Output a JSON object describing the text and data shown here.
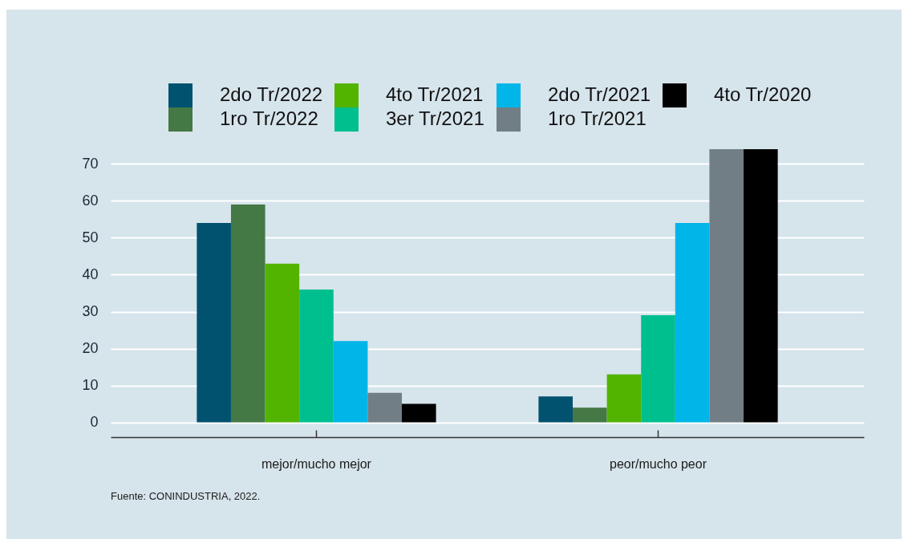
{
  "chart_data": {
    "type": "bar",
    "categories": [
      "mejor/mucho mejor",
      "peor/mucho peor"
    ],
    "series": [
      {
        "name": "2do Tr/2022",
        "color": "#00526f",
        "values": [
          54,
          7
        ]
      },
      {
        "name": "1ro Tr/2022",
        "color": "#447845",
        "values": [
          59,
          4
        ]
      },
      {
        "name": "4to Tr/2021",
        "color": "#53b400",
        "values": [
          43,
          13
        ]
      },
      {
        "name": "3er Tr/2021",
        "color": "#00bf8f",
        "values": [
          36,
          29
        ]
      },
      {
        "name": "2do Tr/2021",
        "color": "#00b5e8",
        "values": [
          22,
          54
        ]
      },
      {
        "name": "1ro Tr/2021",
        "color": "#717e86",
        "values": [
          8,
          74
        ]
      },
      {
        "name": "4to Tr/2020",
        "color": "#000000",
        "values": [
          5,
          74
        ]
      }
    ],
    "ylim": [
      -4,
      74
    ],
    "yticks": [
      0,
      10,
      20,
      30,
      40,
      50,
      60,
      70
    ],
    "grid": "y",
    "legend": "top",
    "annotations": [
      "Fuente: CONINDUSTRIA, 2022."
    ]
  }
}
